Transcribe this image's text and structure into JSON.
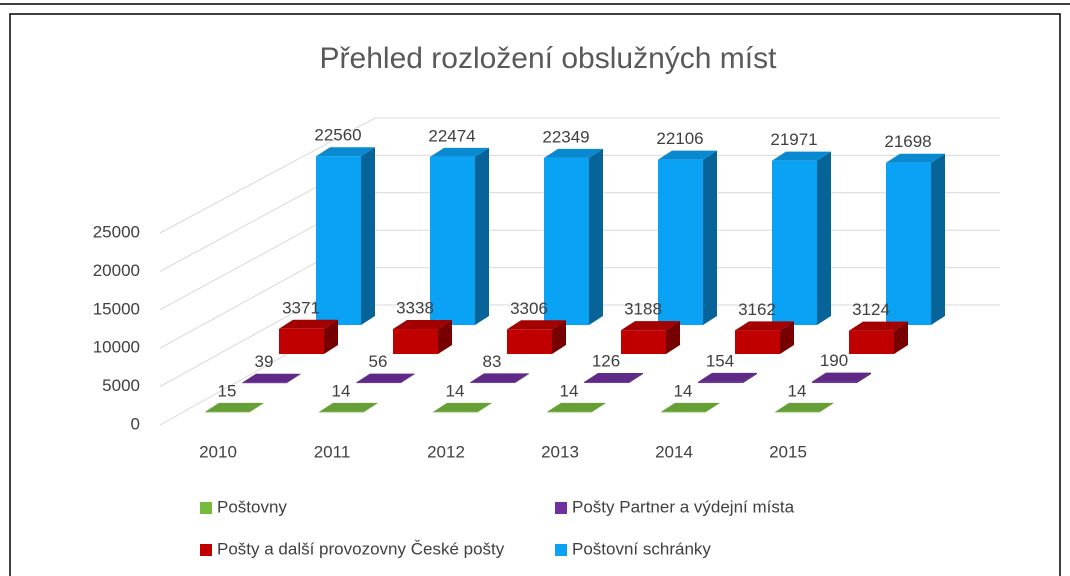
{
  "chart_data": {
    "type": "bar3d",
    "title": "Přehled rozložení obslužných míst",
    "categories": [
      "2010",
      "2011",
      "2012",
      "2013",
      "2014",
      "2015"
    ],
    "series": [
      {
        "name": "Poštovny",
        "color": "#77bb3e",
        "values": [
          15,
          14,
          14,
          14,
          14,
          14
        ]
      },
      {
        "name": "Pošty Partner a výdejní místa",
        "color": "#7030a0",
        "values": [
          39,
          56,
          83,
          126,
          154,
          190
        ]
      },
      {
        "name": "Pošty a další provozovny České pošty",
        "color": "#c00000",
        "values": [
          3371,
          3338,
          3306,
          3188,
          3162,
          3124
        ]
      },
      {
        "name": "Poštovní schránky",
        "color": "#0aa2f5",
        "values": [
          22560,
          22474,
          22349,
          22106,
          21971,
          21698
        ]
      }
    ],
    "ylim": [
      0,
      25000
    ],
    "yticks": [
      0,
      5000,
      10000,
      15000,
      20000,
      25000
    ],
    "grid": true
  }
}
